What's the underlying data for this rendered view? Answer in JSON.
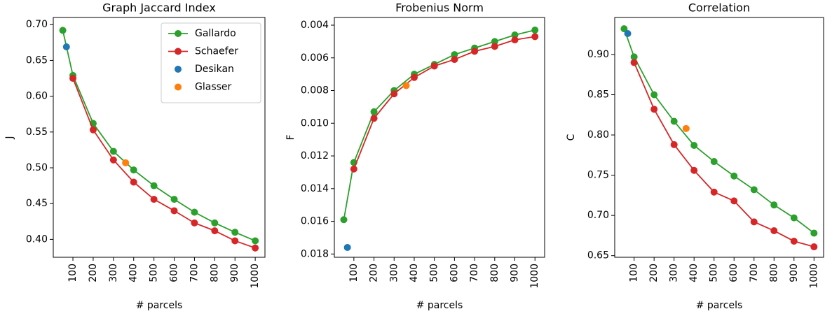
{
  "chart_data": [
    {
      "type": "line",
      "title": "Graph Jaccard Index",
      "xlabel": "# parcels",
      "ylabel": "J",
      "xlim": [
        3,
        1048
      ],
      "xticks": [
        100,
        200,
        300,
        400,
        500,
        600,
        700,
        800,
        900,
        1000
      ],
      "ylim": [
        0.375,
        0.71
      ],
      "yticks": [
        {
          "value": 0.4,
          "label": "0.40"
        },
        0.45,
        {
          "value": 0.5,
          "label": "0.50"
        },
        0.55,
        {
          "value": 0.6,
          "label": "0.60"
        },
        0.65,
        {
          "value": 0.7,
          "label": "0.70"
        }
      ],
      "legend": "upper right",
      "series": [
        {
          "name": "Gallardo",
          "color": "#2ca02c",
          "line": true,
          "x": [
            50,
            100,
            200,
            300,
            400,
            500,
            600,
            700,
            800,
            900,
            1000
          ],
          "values": [
            0.692,
            0.629,
            0.562,
            0.523,
            0.497,
            0.475,
            0.456,
            0.438,
            0.423,
            0.41,
            0.398
          ]
        },
        {
          "name": "Schaefer",
          "color": "#d62728",
          "line": true,
          "x": [
            100,
            200,
            300,
            400,
            500,
            600,
            700,
            800,
            900,
            1000
          ],
          "values": [
            0.625,
            0.553,
            0.511,
            0.48,
            0.456,
            0.44,
            0.423,
            0.412,
            0.398,
            0.388
          ]
        },
        {
          "name": "Desikan",
          "color": "#1f77b4",
          "line": false,
          "x": [
            68
          ],
          "values": [
            0.669
          ]
        },
        {
          "name": "Glasser",
          "color": "#ff7f0e",
          "line": false,
          "x": [
            360
          ],
          "values": [
            0.507
          ]
        }
      ]
    },
    {
      "type": "line",
      "title": "Frobenius Norm",
      "xlabel": "# parcels",
      "ylabel": "F",
      "xlim": [
        3,
        1048
      ],
      "xticks": [
        100,
        200,
        300,
        400,
        500,
        600,
        700,
        800,
        900,
        1000
      ],
      "ylim": [
        0.0182,
        0.00353
      ],
      "yticks": [
        0.004,
        0.006,
        0.008,
        {
          "value": 0.01,
          "label": "0.010"
        },
        0.012,
        0.014,
        0.016,
        0.018
      ],
      "series": [
        {
          "color": "#2ca02c",
          "line": true,
          "x": [
            50,
            100,
            200,
            300,
            400,
            500,
            600,
            700,
            800,
            900,
            1000
          ],
          "values": [
            0.0159,
            0.0124,
            0.0093,
            0.008,
            0.007,
            0.0064,
            0.0058,
            0.0054,
            0.005,
            0.0046,
            0.0043
          ]
        },
        {
          "color": "#d62728",
          "line": true,
          "x": [
            100,
            200,
            300,
            400,
            500,
            600,
            700,
            800,
            900,
            1000
          ],
          "values": [
            0.0128,
            0.0097,
            0.0082,
            0.0072,
            0.0065,
            0.0061,
            0.0056,
            0.0053,
            0.0049,
            0.0047
          ]
        },
        {
          "color": "#1f77b4",
          "line": false,
          "x": [
            68
          ],
          "values": [
            0.0176
          ]
        },
        {
          "color": "#ff7f0e",
          "line": false,
          "x": [
            360
          ],
          "values": [
            0.0077
          ]
        }
      ]
    },
    {
      "type": "line",
      "title": "Correlation",
      "xlabel": "# parcels",
      "ylabel": "C",
      "xlim": [
        3,
        1048
      ],
      "xticks": [
        100,
        200,
        300,
        400,
        500,
        600,
        700,
        800,
        900,
        1000
      ],
      "ylim": [
        0.648,
        0.946
      ],
      "yticks": [
        0.65,
        {
          "value": 0.7,
          "label": "0.70"
        },
        0.75,
        {
          "value": 0.8,
          "label": "0.80"
        },
        0.85,
        {
          "value": 0.9,
          "label": "0.90"
        }
      ],
      "series": [
        {
          "color": "#2ca02c",
          "line": true,
          "x": [
            50,
            100,
            200,
            300,
            400,
            500,
            600,
            700,
            800,
            900,
            1000
          ],
          "values": [
            0.932,
            0.897,
            0.85,
            0.817,
            0.787,
            0.767,
            0.749,
            0.732,
            0.713,
            0.697,
            0.678
          ]
        },
        {
          "color": "#d62728",
          "line": true,
          "x": [
            100,
            200,
            300,
            400,
            500,
            600,
            700,
            800,
            900,
            1000
          ],
          "values": [
            0.89,
            0.832,
            0.788,
            0.756,
            0.729,
            0.718,
            0.692,
            0.681,
            0.668,
            0.661
          ]
        },
        {
          "color": "#1f77b4",
          "line": false,
          "x": [
            68
          ],
          "values": [
            0.926
          ]
        },
        {
          "color": "#ff7f0e",
          "line": false,
          "x": [
            360
          ],
          "values": [
            0.808
          ]
        }
      ]
    }
  ]
}
